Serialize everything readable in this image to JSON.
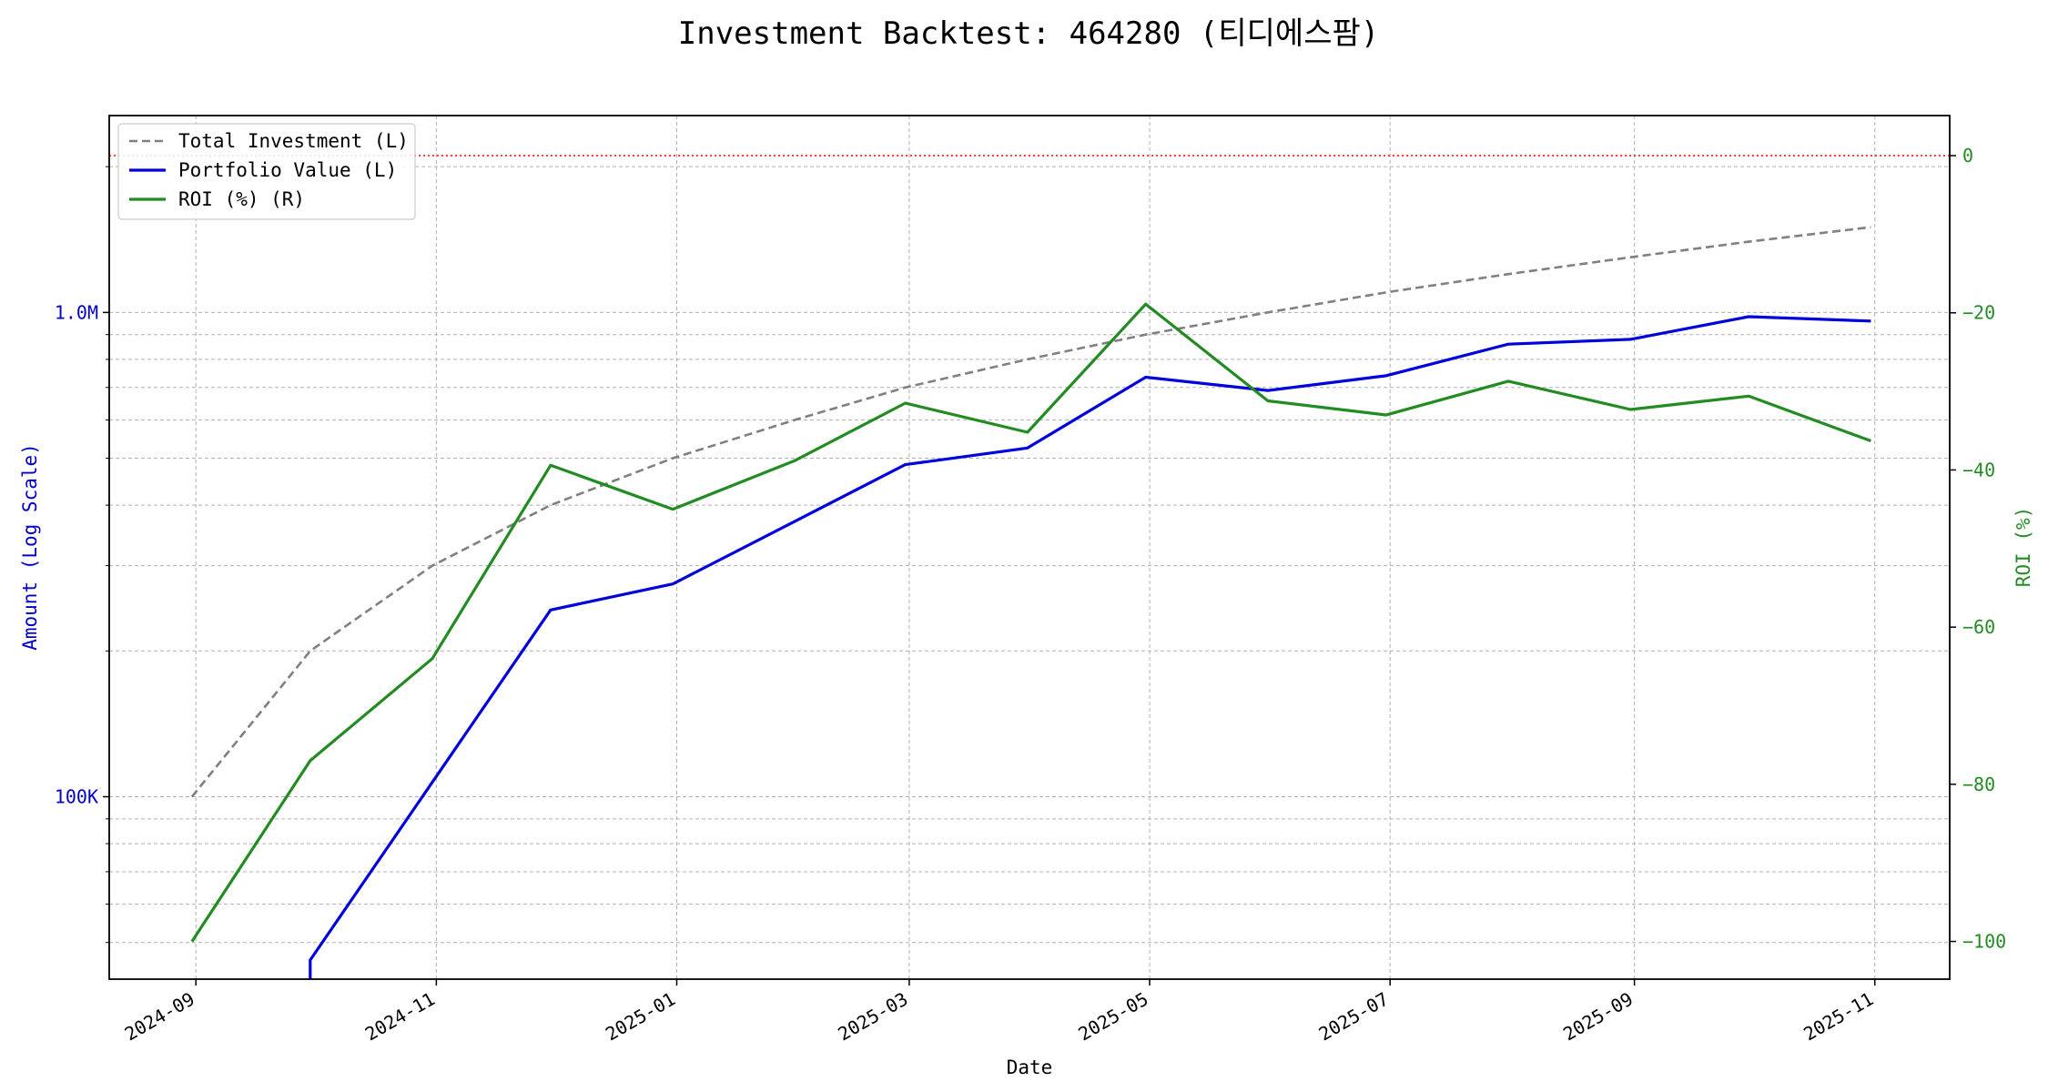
{
  "chart_data": {
    "type": "line",
    "title": "Investment Backtest: 464280 (티디에스팜)",
    "xlabel": "Date",
    "ylabel_left": "Amount (Log Scale)",
    "ylabel_right": "ROI (%)",
    "x_ticks": [
      "2024-09",
      "2024-11",
      "2025-01",
      "2025-03",
      "2025-05",
      "2025-07",
      "2025-09",
      "2025-11"
    ],
    "y_left_ticks": [
      {
        "value": 100000,
        "label": "100K"
      },
      {
        "value": 1000000,
        "label": "1.0M"
      }
    ],
    "y_right_ticks": [
      0,
      -20,
      -40,
      -60,
      -80,
      -100
    ],
    "y_left_scale": "log",
    "y_left_range": [
      42000,
      2550000
    ],
    "y_right_range": [
      -104.8,
      5.1
    ],
    "x_range": [
      "2024-08-10",
      "2025-11-20"
    ],
    "grid": true,
    "legend_position": "top-left",
    "roi_zero_reference": {
      "value": 0,
      "color": "#ff0000",
      "style": "dotted"
    },
    "colors": {
      "left_axis": "#0000cc",
      "right_axis": "#228b22"
    },
    "series": [
      {
        "name": "Total Investment (L)",
        "axis": "left",
        "color": "#808080",
        "style": "dashed",
        "x": [
          "2024-08-31",
          "2024-09-30",
          "2024-10-31",
          "2024-11-30",
          "2024-12-31",
          "2025-01-31",
          "2025-02-28",
          "2025-03-31",
          "2025-04-30",
          "2025-05-31",
          "2025-06-30",
          "2025-07-31",
          "2025-08-31",
          "2025-09-30",
          "2025-10-31"
        ],
        "values": [
          100000,
          200000,
          300000,
          400000,
          500000,
          600000,
          700000,
          800000,
          900000,
          1000000,
          1100000,
          1200000,
          1300000,
          1400000,
          1500000
        ]
      },
      {
        "name": "Portfolio Value (L)",
        "axis": "left",
        "color": "#0000dd",
        "style": "solid",
        "x": [
          "2024-09-30",
          "2024-09-30",
          "2024-11-30",
          "2024-12-31",
          "2025-02-28",
          "2025-03-31",
          "2025-04-30",
          "2025-05-31",
          "2025-06-30",
          "2025-07-31",
          "2025-08-31",
          "2025-09-30",
          "2025-10-31"
        ],
        "values": [
          38000,
          46000,
          243000,
          275000,
          485000,
          525000,
          735000,
          690000,
          740000,
          860000,
          880000,
          980000,
          960000
        ]
      },
      {
        "name": "ROI (%) (R)",
        "axis": "right",
        "color": "#228b22",
        "style": "solid",
        "x": [
          "2024-08-31",
          "2024-09-30",
          "2024-10-31",
          "2024-11-30",
          "2024-12-31",
          "2025-01-31",
          "2025-02-28",
          "2025-03-31",
          "2025-04-30",
          "2025-05-31",
          "2025-06-30",
          "2025-07-31",
          "2025-08-31",
          "2025-09-30",
          "2025-10-31"
        ],
        "values": [
          -100,
          -77,
          -64,
          -39.4,
          -45,
          -38.8,
          -31.5,
          -35.2,
          -18.9,
          -31.2,
          -33,
          -28.7,
          -32.3,
          -30.6,
          -36.3
        ]
      }
    ]
  }
}
